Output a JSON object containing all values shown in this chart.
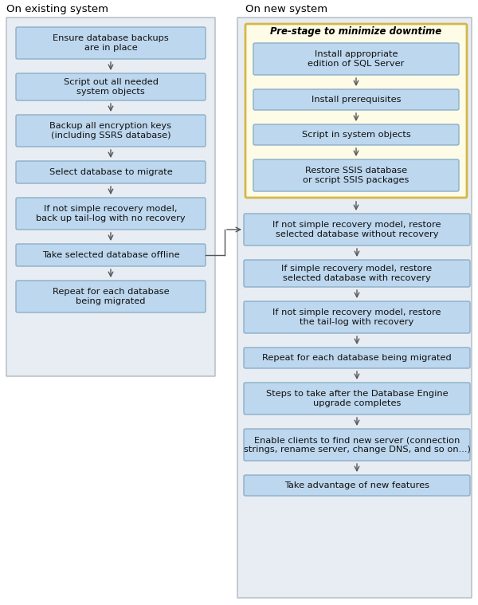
{
  "title_left": "On existing system",
  "title_right": "On new system",
  "bg_outer": "#ffffff",
  "bg_panel": "#e8edf3",
  "box_blue": "#bdd7ee",
  "box_yellow_bg": "#fefbe6",
  "border_panel": "#b0b8c0",
  "border_box": "#8aafc8",
  "border_yellow": "#d4b84a",
  "text_color": "#111111",
  "arrow_color": "#555555",
  "left_boxes": [
    "Ensure database backups\nare in place",
    "Script out all needed\nsystem objects",
    "Backup all encryption keys\n(including SSRS database)",
    "Select database to migrate",
    "If not simple recovery model,\nback up tail-log with no recovery",
    "Take selected database offline",
    "Repeat for each database\nbeing migrated"
  ],
  "prestage_label": "Pre-stage to minimize downtime",
  "prestage_boxes": [
    "Install appropriate\nedition of SQL Server",
    "Install prerequisites",
    "Script in system objects",
    "Restore SSIS database\nor script SSIS packages"
  ],
  "right_boxes": [
    "If not simple recovery model, restore\nselected database without recovery",
    "If simple recovery model, restore\nselected database with recovery",
    "If not simple recovery model, restore\nthe tail-log with recovery",
    "Repeat for each database being migrated",
    "Steps to take after the Database Engine\nupgrade completes",
    "Enable clients to find new server (connection\nstrings, rename server, change DNS, and so on...)",
    "Take advantage of new features"
  ]
}
